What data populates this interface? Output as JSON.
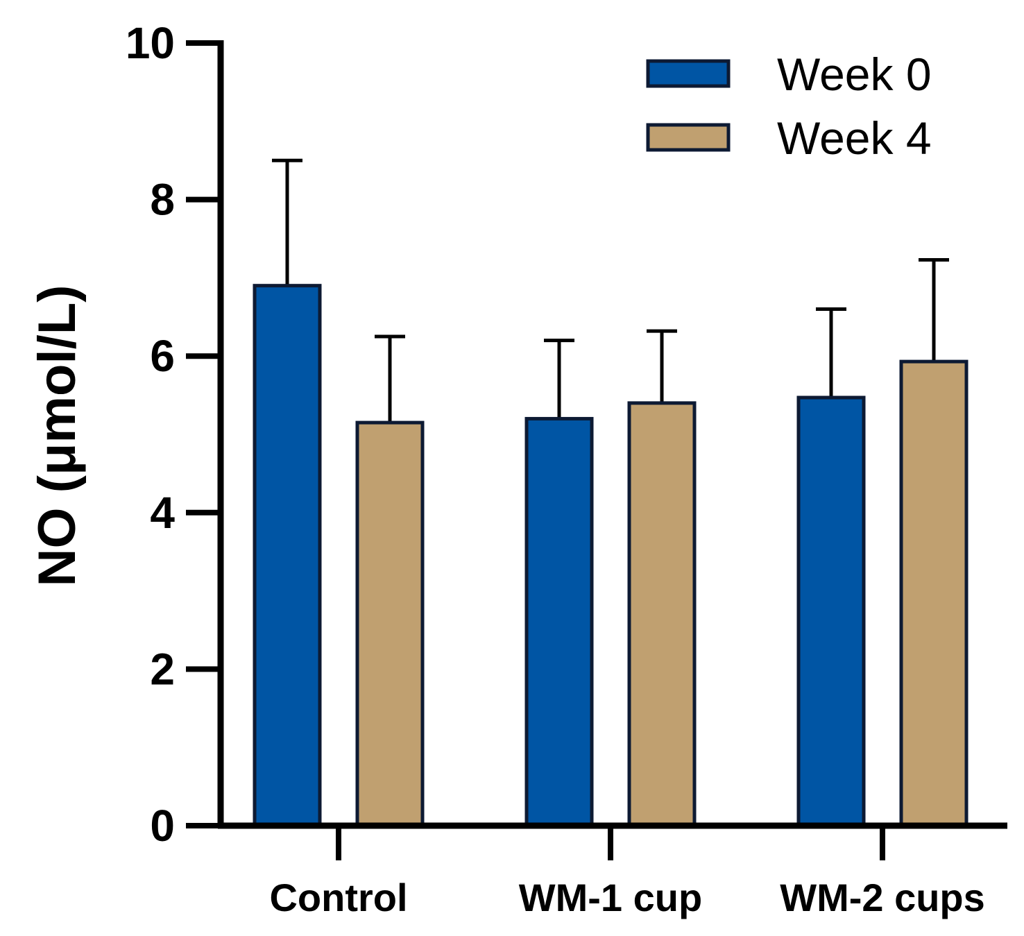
{
  "chart_data": {
    "type": "bar",
    "title": "",
    "xlabel": "",
    "ylabel": "NO (μmol/L)",
    "ylim": [
      0,
      10
    ],
    "yticks": [
      0,
      2,
      4,
      6,
      8,
      10
    ],
    "grid": false,
    "legend_position": "top-right",
    "categories": [
      "Control",
      "WM-1 cup",
      "WM-2 cups"
    ],
    "series": [
      {
        "name": "Week 0",
        "color": "#0055A4",
        "values": [
          6.9,
          5.2,
          5.47
        ],
        "errors": [
          1.6,
          1.0,
          1.13
        ]
      },
      {
        "name": "Week 4",
        "color": "#C0A070",
        "values": [
          5.15,
          5.4,
          5.93
        ],
        "errors": [
          1.1,
          0.92,
          1.3
        ]
      }
    ]
  }
}
